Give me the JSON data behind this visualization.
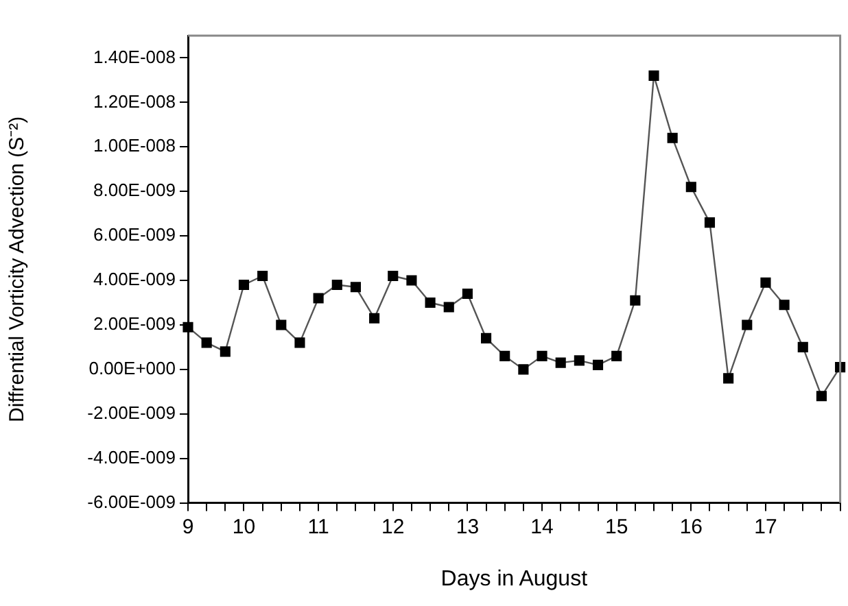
{
  "chart_data": {
    "type": "line",
    "xlabel": "Days in August",
    "ylabel": "Diffrential Vorticity Advection (S⁻²)",
    "categories": [
      "9",
      null,
      null,
      "10",
      null,
      null,
      null,
      "11",
      null,
      null,
      null,
      "12",
      null,
      null,
      null,
      "13",
      null,
      null,
      null,
      "14",
      null,
      null,
      null,
      "15",
      null,
      null,
      null,
      "16",
      null,
      null,
      null,
      "17",
      null,
      null,
      null,
      null
    ],
    "series": [
      {
        "color": "#000000",
        "values": [
          1.9e-09,
          1.2e-09,
          8e-10,
          3.8e-09,
          4.2e-09,
          2e-09,
          1.2e-09,
          3.2e-09,
          3.8e-09,
          3.7e-09,
          2.3e-09,
          4.2e-09,
          4e-09,
          3e-09,
          2.8e-09,
          3.4e-09,
          1.4e-09,
          6e-10,
          0,
          6e-10,
          3e-10,
          4e-10,
          2e-10,
          6e-10,
          3.1e-09,
          1.32e-08,
          1.04e-08,
          8.2e-09,
          6.6e-09,
          -4e-10,
          2e-09,
          3.9e-09,
          2.9e-09,
          1e-09,
          -1.2e-09,
          1e-10
        ]
      }
    ],
    "ylim": [
      -6e-09,
      1.5e-08
    ],
    "yticks": [
      {
        "value": -6e-09,
        "label": "-6.00E-009"
      },
      {
        "value": -4e-09,
        "label": "-4.00E-009"
      },
      {
        "value": -2e-09,
        "label": "-2.00E-009"
      },
      {
        "value": 0,
        "label": "0.00E+000"
      },
      {
        "value": 2e-09,
        "label": "2.00E-009"
      },
      {
        "value": 4e-09,
        "label": "4.00E-009"
      },
      {
        "value": 6e-09,
        "label": "6.00E-009"
      },
      {
        "value": 8e-09,
        "label": "8.00E-009"
      },
      {
        "value": 1e-08,
        "label": "1.00E-008"
      },
      {
        "value": 1.2e-08,
        "label": "1.20E-008"
      },
      {
        "value": 1.4e-08,
        "label": "1.40E-008"
      }
    ],
    "grid": false,
    "legend": false,
    "marker": "square",
    "line_style": "solid"
  }
}
